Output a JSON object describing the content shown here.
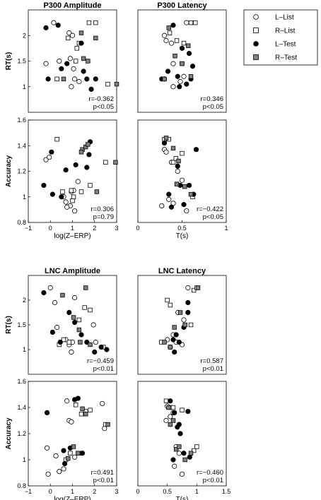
{
  "legend": [
    {
      "label": "L–List",
      "marker": "circle",
      "fill": "#ffffff"
    },
    {
      "label": "R–List",
      "marker": "square",
      "fill": "#ffffff"
    },
    {
      "label": "L–Test",
      "marker": "circle",
      "fill": "#000000"
    },
    {
      "label": "R–Test",
      "marker": "square",
      "fill": "#808080"
    }
  ],
  "chart_data": [
    {
      "type": "scatter",
      "title": "P300 Amplitude",
      "xlabel": "",
      "ylabel": "RT(s)",
      "xlim": [
        -1,
        3
      ],
      "ylim": [
        0.5,
        2.5
      ],
      "xticks": [],
      "yticks": [
        "1",
        "1.5",
        "2"
      ],
      "stat": {
        "r": "r=-0.362",
        "p": "p<0.05"
      },
      "series": [
        {
          "name": "L–List",
          "x": [
            -0.2,
            0.15,
            0.85,
            1.0,
            0.9,
            1.05,
            1.1,
            1.3,
            0.4,
            0.95
          ],
          "y": [
            1.45,
            2.25,
            2.05,
            2.0,
            1.55,
            1.35,
            1.15,
            1.1,
            1.5,
            1.0
          ]
        },
        {
          "name": "R–List",
          "x": [
            0.3,
            1.2,
            1.3,
            1.75,
            2.05,
            2.6,
            0.8,
            1.15
          ],
          "y": [
            1.15,
            1.75,
            1.85,
            2.25,
            2.25,
            1.05,
            1.95,
            1.5
          ]
        },
        {
          "name": "L–Test",
          "x": [
            -0.2,
            0.35,
            0.5,
            -0.1,
            1.4,
            1.5,
            1.65,
            1.85,
            2.05,
            0.75
          ],
          "y": [
            2.15,
            2.2,
            1.35,
            1.15,
            1.85,
            1.3,
            1.15,
            0.95,
            1.15,
            1.45
          ]
        },
        {
          "name": "R–Test",
          "x": [
            0.6,
            1.5,
            1.7,
            2.05,
            3.0,
            1.4
          ],
          "y": [
            1.15,
            1.55,
            1.5,
            1.95,
            1.05,
            2.05
          ]
        }
      ]
    },
    {
      "type": "scatter",
      "title": "P300 Latency",
      "xlabel": "",
      "ylabel": "",
      "xlim": [
        0,
        1
      ],
      "ylim": [
        0.5,
        2.5
      ],
      "xticks": [],
      "yticks": [],
      "stat": {
        "r": "r=0.346",
        "p": "p<0.05"
      },
      "series": [
        {
          "name": "L–List",
          "x": [
            0.3,
            0.32,
            0.4,
            0.48,
            0.52,
            0.4,
            0.3,
            0.55,
            0.38
          ],
          "y": [
            2.0,
            1.9,
            1.45,
            1.1,
            1.2,
            1.0,
            1.15,
            2.25,
            1.85
          ]
        },
        {
          "name": "R–List",
          "x": [
            0.36,
            0.52,
            0.6,
            0.65,
            0.5,
            0.44
          ],
          "y": [
            2.05,
            1.85,
            2.25,
            2.25,
            1.45,
            1.9
          ]
        },
        {
          "name": "L–Test",
          "x": [
            0.27,
            0.34,
            0.4,
            0.45,
            0.5,
            0.58,
            0.6,
            0.62,
            0.55,
            0.47
          ],
          "y": [
            1.15,
            1.3,
            2.2,
            1.2,
            1.75,
            1.65,
            1.15,
            1.4,
            1.05,
            1.0
          ]
        },
        {
          "name": "R–Test",
          "x": [
            0.35,
            0.42,
            0.5,
            0.57,
            0.6,
            0.3
          ],
          "y": [
            2.15,
            1.6,
            1.45,
            1.8,
            1.2,
            1.15
          ]
        }
      ]
    },
    {
      "type": "scatter",
      "title": "",
      "xlabel": "log(Z–ERP)",
      "ylabel": "Accuracy",
      "xlim": [
        -1,
        3
      ],
      "ylim": [
        0.8,
        1.6
      ],
      "xticks": [
        "−1",
        "0",
        "1",
        "2",
        "3"
      ],
      "yticks": [
        "0.8",
        "1",
        "1.2",
        "1.4",
        "1.6"
      ],
      "stat": {
        "r": "r=0.306",
        "p": "p=0.79"
      },
      "series": [
        {
          "name": "L–List",
          "x": [
            -0.2,
            -0.05,
            0.7,
            0.9,
            1.1,
            0.75,
            1.25,
            0.95,
            0.6,
            1.05
          ],
          "y": [
            1.29,
            1.31,
            0.96,
            0.93,
            0.89,
            0.92,
            1.12,
            1.04,
            1.0,
            1.05
          ]
        },
        {
          "name": "R–List",
          "x": [
            0.3,
            0.95,
            1.0,
            1.4,
            1.8,
            2.5,
            0.55,
            1.05
          ],
          "y": [
            1.45,
            1.05,
            0.97,
            1.04,
            1.09,
            1.27,
            1.04,
            1.0
          ]
        },
        {
          "name": "L–Test",
          "x": [
            -0.3,
            0.05,
            0.1,
            0.5,
            0.7,
            1.15,
            1.65,
            1.75,
            1.8
          ],
          "y": [
            1.09,
            1.35,
            1.02,
            1.0,
            1.21,
            1.25,
            1.23,
            1.33,
            1.43
          ]
        },
        {
          "name": "R–Test",
          "x": [
            1.45,
            1.6,
            1.7,
            2.1,
            2.95,
            1.4
          ],
          "y": [
            1.37,
            1.39,
            1.41,
            1.04,
            1.27,
            1.35
          ]
        }
      ]
    },
    {
      "type": "scatter",
      "title": "",
      "xlabel": "T(s)",
      "ylabel": "",
      "xlim": [
        0,
        1
      ],
      "ylim": [
        0.8,
        1.6
      ],
      "xticks": [
        "0",
        "0.5",
        "1"
      ],
      "yticks": [],
      "stat": {
        "r": "r=−0.422",
        "p": "p<0.05"
      },
      "series": [
        {
          "name": "L–List",
          "x": [
            0.3,
            0.32,
            0.38,
            0.45,
            0.5,
            0.35,
            0.27,
            0.4,
            0.55
          ],
          "y": [
            1.37,
            1.35,
            1.27,
            1.2,
            1.13,
            0.98,
            0.93,
            0.95,
            0.89
          ]
        },
        {
          "name": "R–List",
          "x": [
            0.3,
            0.35,
            0.4,
            0.5,
            0.62,
            0.43
          ],
          "y": [
            1.45,
            1.45,
            1.27,
            1.34,
            1.0,
            1.3
          ]
        },
        {
          "name": "L–Test",
          "x": [
            0.3,
            0.35,
            0.45,
            0.48,
            0.52,
            0.58,
            0.63,
            0.38,
            0.66
          ],
          "y": [
            1.42,
            1.02,
            1.24,
            1.09,
            0.94,
            1.09,
            1.02,
            0.92,
            1.37
          ]
        },
        {
          "name": "R–Test",
          "x": [
            0.32,
            0.4,
            0.46,
            0.53,
            0.6,
            0.44
          ],
          "y": [
            1.46,
            1.38,
            1.28,
            1.08,
            1.02,
            1.1
          ]
        }
      ]
    },
    {
      "type": "scatter",
      "title": "LNC Amplitude",
      "xlabel": "",
      "ylabel": "RT(s)",
      "xlim": [
        -1,
        3
      ],
      "ylim": [
        0.5,
        2.5
      ],
      "xticks": [],
      "yticks": [
        "1",
        "1.5",
        "2"
      ],
      "stat": {
        "r": "r=−0.459",
        "p": "p<0.01"
      },
      "series": [
        {
          "name": "L–List",
          "x": [
            0.0,
            0.2,
            0.3,
            0.7,
            1.0,
            1.1,
            0.85,
            0.95,
            2.05,
            1.95
          ],
          "y": [
            2.25,
            1.95,
            1.45,
            1.2,
            1.15,
            2.05,
            1.1,
            0.95,
            1.15,
            1.5
          ]
        },
        {
          "name": "R–List",
          "x": [
            0.4,
            0.6,
            0.85,
            1.3,
            1.55,
            1.8,
            2.4
          ],
          "y": [
            1.1,
            1.2,
            1.15,
            1.6,
            1.85,
            1.8,
            1.05
          ]
        },
        {
          "name": "L–Test",
          "x": [
            -0.3,
            0.1,
            0.45,
            0.85,
            1.1,
            1.4,
            1.65,
            2.0,
            2.3,
            2.55
          ],
          "y": [
            2.15,
            1.35,
            1.15,
            1.75,
            1.55,
            1.3,
            1.15,
            0.95,
            1.05,
            1.0
          ]
        },
        {
          "name": "R–Test",
          "x": [
            0.55,
            1.35,
            1.6,
            1.8,
            1.05,
            1.3
          ],
          "y": [
            2.1,
            1.15,
            2.25,
            1.1,
            1.65,
            1.4
          ]
        }
      ]
    },
    {
      "type": "scatter",
      "title": "LNC Latency",
      "xlabel": "",
      "ylabel": "",
      "xlim": [
        0,
        1.5
      ],
      "ylim": [
        0.5,
        2.5
      ],
      "xticks": [],
      "yticks": [],
      "stat": {
        "r": "r=0.587",
        "p": "p<0.01"
      },
      "series": [
        {
          "name": "L–List",
          "x": [
            0.5,
            0.6,
            0.65,
            0.78,
            0.85,
            0.75,
            0.68,
            0.55
          ],
          "y": [
            1.2,
            1.3,
            1.15,
            1.6,
            2.25,
            1.1,
            1.75,
            1.05
          ]
        },
        {
          "name": "R–List",
          "x": [
            0.4,
            0.5,
            0.55,
            0.9,
            0.95,
            1.0
          ],
          "y": [
            1.15,
            2.0,
            1.9,
            1.5,
            2.2,
            2.25
          ]
        },
        {
          "name": "L–Test",
          "x": [
            0.55,
            0.62,
            0.65,
            0.7,
            0.78,
            0.85,
            0.6,
            0.85
          ],
          "y": [
            1.05,
            0.95,
            1.3,
            1.15,
            1.45,
            1.75,
            1.2,
            1.95
          ]
        },
        {
          "name": "R–Test",
          "x": [
            0.45,
            0.55,
            0.62,
            0.72,
            0.8,
            1.02
          ],
          "y": [
            1.15,
            1.05,
            1.45,
            1.75,
            1.5,
            2.25
          ]
        }
      ]
    },
    {
      "type": "scatter",
      "title": "",
      "xlabel": "log(Z–ERP)",
      "ylabel": "Accuracy",
      "xlim": [
        -1,
        3
      ],
      "ylim": [
        0.8,
        1.6
      ],
      "xticks": [
        "−1",
        "0",
        "1",
        "2",
        "3"
      ],
      "yticks": [
        "0.8",
        "1",
        "1.2",
        "1.4",
        "1.6"
      ],
      "stat": {
        "r": "r=0.491",
        "p": "p<0.01"
      },
      "series": [
        {
          "name": "L–List",
          "x": [
            -0.15,
            -0.1,
            0.25,
            0.4,
            0.75,
            0.85,
            0.95,
            1.1,
            1.6,
            2.35,
            2.45,
            0.6
          ],
          "y": [
            1.09,
            0.89,
            1.03,
            0.91,
            1.45,
            1.3,
            1.29,
            1.02,
            1.37,
            1.43,
            1.24,
            0.93
          ]
        },
        {
          "name": "R–List",
          "x": [
            0.9,
            1.15,
            1.4,
            1.8,
            2.5,
            1.3,
            0.7
          ],
          "y": [
            1.05,
            1.42,
            1.35,
            1.38,
            1.27,
            1.05,
            1.0
          ]
        },
        {
          "name": "L–Test",
          "x": [
            -0.15,
            0.6,
            0.9,
            1.1,
            1.25,
            1.45,
            0.65
          ],
          "y": [
            1.36,
            1.07,
            1.09,
            1.46,
            1.47,
            1.05,
            0.97
          ]
        },
        {
          "name": "R–Test",
          "x": [
            1.05,
            1.45,
            1.6,
            2.6,
            0.8,
            1.25
          ],
          "y": [
            1.1,
            1.39,
            1.35,
            1.27,
            1.01,
            1.05
          ]
        }
      ]
    },
    {
      "type": "scatter",
      "title": "",
      "xlabel": "T(s)",
      "ylabel": "",
      "xlim": [
        0,
        1.5
      ],
      "ylim": [
        0.8,
        1.6
      ],
      "xticks": [
        "0",
        "0.5",
        "1",
        "1.5"
      ],
      "yticks": [],
      "stat": {
        "r": "r=−0.460",
        "p": "p<0.01"
      },
      "series": [
        {
          "name": "L–List",
          "x": [
            0.5,
            0.55,
            0.6,
            0.65,
            0.7,
            0.75,
            0.62,
            0.48
          ],
          "y": [
            1.41,
            1.33,
            1.36,
            1.1,
            1.05,
            0.89,
            0.95,
            1.3
          ]
        },
        {
          "name": "R–List",
          "x": [
            0.48,
            0.55,
            0.6,
            0.75,
            1.0,
            0.95
          ],
          "y": [
            1.45,
            1.4,
            1.4,
            1.38,
            1.1,
            1.07
          ]
        },
        {
          "name": "L–Test",
          "x": [
            0.55,
            0.62,
            0.67,
            0.72,
            0.78,
            0.85,
            0.88,
            0.6,
            0.7
          ],
          "y": [
            1.45,
            1.36,
            1.25,
            1.2,
            1.05,
            1.37,
            1.02,
            1.0,
            1.27
          ]
        },
        {
          "name": "R–Test",
          "x": [
            0.52,
            0.6,
            0.65,
            0.7,
            0.8,
            0.9,
            0.55
          ],
          "y": [
            1.4,
            1.3,
            1.08,
            1.1,
            1.0,
            1.05,
            1.27
          ]
        }
      ]
    }
  ]
}
